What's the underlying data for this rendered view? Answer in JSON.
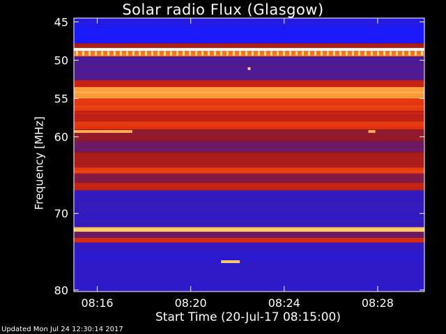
{
  "chart_data": {
    "type": "heatmap",
    "title": "Solar radio Flux (Glasgow)",
    "xlabel": "Start Time (20-Jul-17 08:15:00)",
    "ylabel": "Frequency [MHz]",
    "y_ticks": [
      45,
      50,
      55,
      60,
      70,
      80
    ],
    "y_tick_labels": [
      "45",
      "50",
      "55",
      "60",
      "70",
      "80"
    ],
    "ylim": [
      44.5,
      80.2
    ],
    "x_ticks_minutes": [
      1,
      5,
      9,
      13
    ],
    "x_tick_labels": [
      "08:16",
      "08:20",
      "08:24",
      "08:28"
    ],
    "xlim_minutes": [
      0,
      15
    ],
    "colormap": [
      "#1a1aff",
      "#3a1ab0",
      "#6a1a6a",
      "#a01a1a",
      "#e02a10",
      "#ff7a1a",
      "#ffd070",
      "#ffffff"
    ],
    "bands": [
      {
        "from": 44.5,
        "to": 45.7,
        "level": 0.05
      },
      {
        "from": 45.7,
        "to": 47.8,
        "level": 0.0
      },
      {
        "from": 47.8,
        "to": 48.4,
        "level": 0.45
      },
      {
        "from": 48.4,
        "to": 48.8,
        "level": 1.0
      },
      {
        "from": 48.8,
        "to": 49.5,
        "level": 0.7
      },
      {
        "from": 49.5,
        "to": 52.6,
        "level": 0.2
      },
      {
        "from": 52.6,
        "to": 53.5,
        "level": 0.5
      },
      {
        "from": 53.5,
        "to": 55.0,
        "level": 0.78
      },
      {
        "from": 55.0,
        "to": 56.6,
        "level": 0.6
      },
      {
        "from": 56.6,
        "to": 58.0,
        "level": 0.5
      },
      {
        "from": 58.0,
        "to": 59.0,
        "level": 0.6
      },
      {
        "from": 59.0,
        "to": 60.5,
        "level": 0.4
      },
      {
        "from": 60.5,
        "to": 62.0,
        "level": 0.3
      },
      {
        "from": 62.0,
        "to": 64.0,
        "level": 0.45
      },
      {
        "from": 64.0,
        "to": 64.8,
        "level": 0.6
      },
      {
        "from": 64.8,
        "to": 66.0,
        "level": 0.35
      },
      {
        "from": 66.0,
        "to": 67.0,
        "level": 0.5
      },
      {
        "from": 67.0,
        "to": 71.8,
        "level": 0.12
      },
      {
        "from": 71.8,
        "to": 72.4,
        "level": 0.85
      },
      {
        "from": 72.4,
        "to": 73.2,
        "level": 0.3
      },
      {
        "from": 73.2,
        "to": 73.8,
        "level": 0.55
      },
      {
        "from": 73.8,
        "to": 80.2,
        "level": 0.1
      }
    ],
    "features": [
      {
        "kind": "spike-row",
        "freq": 49.1,
        "level": 0.9
      },
      {
        "kind": "segment",
        "freq": 59.3,
        "from_min": 0,
        "to_min": 2.5,
        "level": 0.8
      },
      {
        "kind": "segment",
        "freq": 59.3,
        "from_min": 12.6,
        "to_min": 12.9,
        "level": 0.8
      },
      {
        "kind": "segment",
        "freq": 76.3,
        "from_min": 6.3,
        "to_min": 7.1,
        "level": 0.85
      },
      {
        "kind": "dot",
        "freq": 51.1,
        "at_min": 7.5,
        "level": 0.85
      }
    ]
  }
}
